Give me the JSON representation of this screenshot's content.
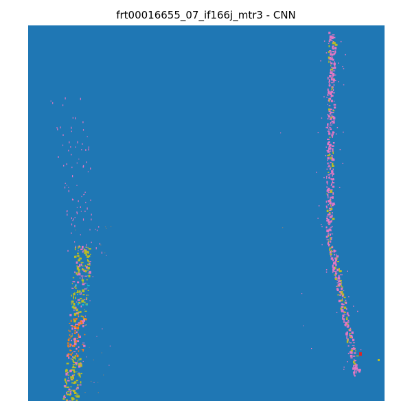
{
  "figure": {
    "title": "frt00016655_07_if166j_mtr3 - CNN"
  },
  "colors": {
    "background": "#1f77b4",
    "pink": "#e377c2",
    "olive": "#bcbd22",
    "orange": "#ff7f0e",
    "cyan": "#17becf",
    "red": "#d62728",
    "gray": "#7f7f7f"
  }
}
